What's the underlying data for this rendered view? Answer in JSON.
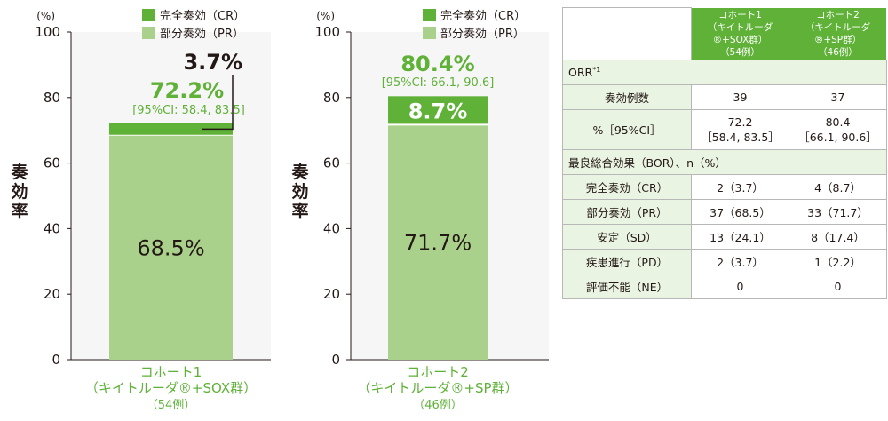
{
  "chart_data": [
    {
      "type": "bar",
      "stacked": true,
      "ylabel": "奏効率",
      "yunit": "(%)",
      "ylim": [
        0,
        100
      ],
      "yticks": [
        "0",
        "20",
        "40",
        "60",
        "80",
        "100"
      ],
      "categories": [
        "コホート1（キイトルーダ®+SOX群）"
      ],
      "category_lines": [
        "コホート1",
        "（キイトルーダ®+SOX群）",
        "（54例）"
      ],
      "series": [
        {
          "name": "部分奏効（PR）",
          "values": [
            68.5
          ],
          "label": "68.5%",
          "color": "#aad18b"
        },
        {
          "name": "完全奏効（CR）",
          "values": [
            3.7
          ],
          "label": "3.7%",
          "color": "#5fb138"
        }
      ],
      "total": 72.2,
      "total_label": "72.2%",
      "ci_label": "[95%CI: 58.4, 83.5]",
      "legend": [
        "完全奏効（CR）",
        "部分奏効（PR）"
      ],
      "legend_position": "top-right"
    },
    {
      "type": "bar",
      "stacked": true,
      "ylabel": "奏効率",
      "yunit": "(%)",
      "ylim": [
        0,
        100
      ],
      "yticks": [
        "0",
        "20",
        "40",
        "60",
        "80",
        "100"
      ],
      "categories": [
        "コホート2（キイトルーダ®+SP群）"
      ],
      "category_lines": [
        "コホート2",
        "（キイトルーダ®+SP群）",
        "（46例）"
      ],
      "series": [
        {
          "name": "部分奏効（PR）",
          "values": [
            71.7
          ],
          "label": "71.7%",
          "color": "#aad18b"
        },
        {
          "name": "完全奏効（CR）",
          "values": [
            8.7
          ],
          "label": "8.7%",
          "color": "#5fb138"
        }
      ],
      "total": 80.4,
      "total_label": "80.4%",
      "ci_label": "[95%CI: 66.1, 90.6]",
      "legend": [
        "完全奏効（CR）",
        "部分奏効（PR）"
      ],
      "legend_position": "top-right"
    },
    {
      "type": "table",
      "header": {
        "cohort1": [
          "コホート1",
          "（キイトルーダ®+SOX群）",
          "（54例）"
        ],
        "cohort2": [
          "コホート2",
          "（キイトルーダ®+SP群）",
          "（46例）"
        ]
      },
      "sections": {
        "orr": "ORR",
        "orr_sup": "*1",
        "bor": "最良総合効果（BOR）、n（%）"
      },
      "orr_rows": [
        {
          "label": "奏効例数",
          "c1": [
            "39"
          ],
          "c2": [
            "37"
          ]
        },
        {
          "label": "%［95%CI］",
          "c1": [
            "72.2",
            "［58.4, 83.5］"
          ],
          "c2": [
            "80.4",
            "［66.1, 90.6］"
          ]
        }
      ],
      "bor_rows": [
        {
          "label": "完全奏効（CR）",
          "c1": "2（3.7）",
          "c2": "4（8.7）"
        },
        {
          "label": "部分奏効（PR）",
          "c1": "37（68.5）",
          "c2": "33（71.7）"
        },
        {
          "label": "安定（SD）",
          "c1": "13（24.1）",
          "c2": "8（17.4）"
        },
        {
          "label": "疾患進行（PD）",
          "c1": "2（3.7）",
          "c2": "1（2.2）"
        },
        {
          "label": "評価不能（NE）",
          "c1": "0",
          "c2": "0"
        }
      ]
    }
  ]
}
